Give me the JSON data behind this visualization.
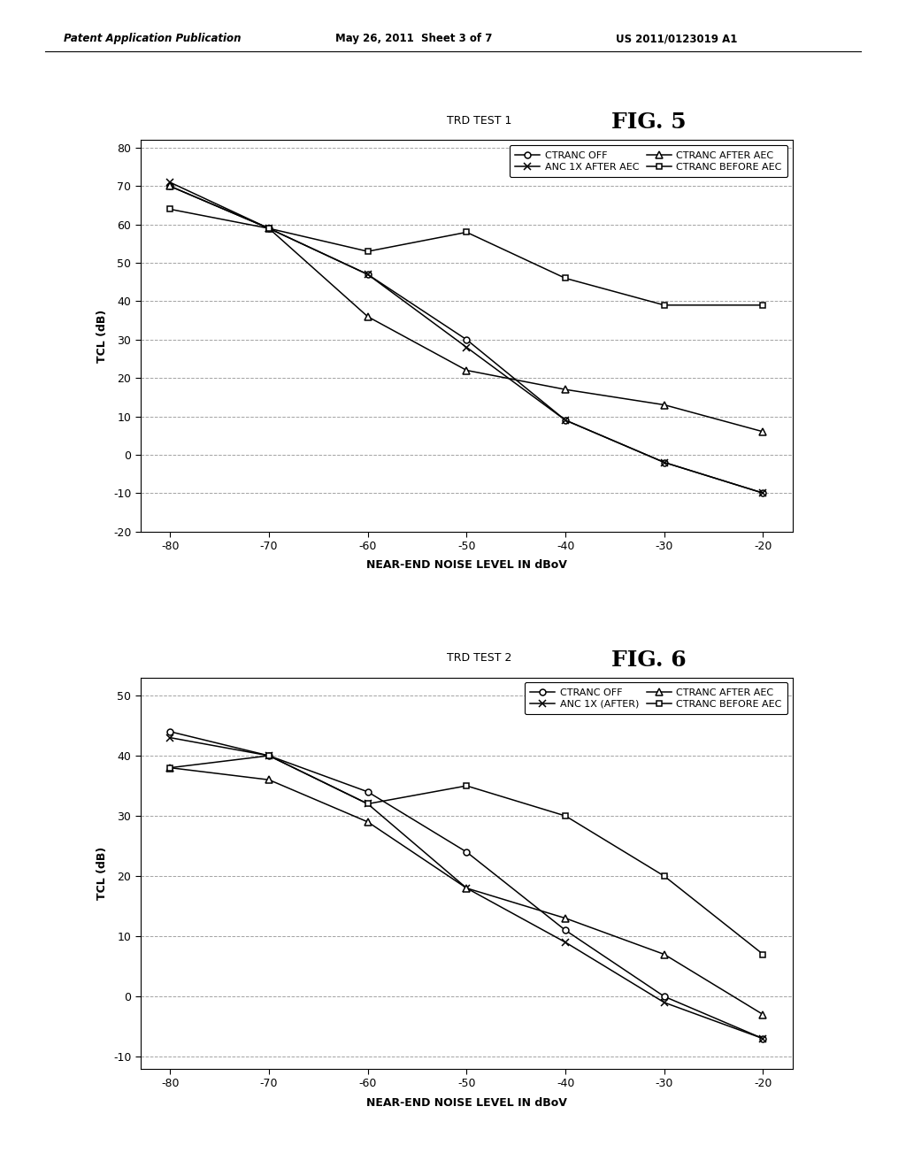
{
  "fig5": {
    "title": "TRD TEST 1",
    "fig_label": "FIG. 5",
    "xlabel": "NEAR-END NOISE LEVEL IN dBoV",
    "ylabel": "TCL (dB)",
    "xlim": [
      -83,
      -17
    ],
    "ylim": [
      -20,
      82
    ],
    "yticks": [
      -20,
      -10,
      0,
      10,
      20,
      30,
      40,
      50,
      60,
      70,
      80
    ],
    "xticks": [
      -80,
      -70,
      -60,
      -50,
      -40,
      -30,
      -20
    ],
    "x": [
      -80,
      -70,
      -60,
      -50,
      -40,
      -30,
      -20
    ],
    "series": [
      {
        "label": "CTRANC OFF",
        "marker": "o",
        "y": [
          70,
          59,
          47,
          30,
          9,
          -2,
          -10
        ]
      },
      {
        "label": "ANC 1X AFTER AEC",
        "marker": "x",
        "y": [
          71,
          59,
          47,
          28,
          9,
          -2,
          -10
        ]
      },
      {
        "label": "CTRANC AFTER AEC",
        "marker": "^",
        "y": [
          70,
          59,
          36,
          22,
          17,
          13,
          6
        ]
      },
      {
        "label": "CTRANC BEFORE AEC",
        "marker": "s",
        "y": [
          64,
          59,
          53,
          58,
          46,
          39,
          39
        ]
      }
    ]
  },
  "fig6": {
    "title": "TRD TEST 2",
    "fig_label": "FIG. 6",
    "xlabel": "NEAR-END NOISE LEVEL IN dBoV",
    "ylabel": "TCL (dB)",
    "xlim": [
      -83,
      -17
    ],
    "ylim": [
      -12,
      53
    ],
    "yticks": [
      -10,
      0,
      10,
      20,
      30,
      40,
      50
    ],
    "xticks": [
      -80,
      -70,
      -60,
      -50,
      -40,
      -30,
      -20
    ],
    "x": [
      -80,
      -70,
      -60,
      -50,
      -40,
      -30,
      -20
    ],
    "series": [
      {
        "label": "CTRANC OFF",
        "marker": "o",
        "y": [
          44,
          40,
          34,
          24,
          11,
          0,
          -7
        ]
      },
      {
        "label": "ANC 1X (AFTER)",
        "marker": "x",
        "y": [
          43,
          40,
          32,
          18,
          9,
          -1,
          -7
        ]
      },
      {
        "label": "CTRANC AFTER AEC",
        "marker": "^",
        "y": [
          38,
          36,
          29,
          18,
          13,
          7,
          -3
        ]
      },
      {
        "label": "CTRANC BEFORE AEC",
        "marker": "s",
        "y": [
          38,
          40,
          32,
          35,
          30,
          20,
          7
        ]
      }
    ]
  },
  "header_left": "Patent Application Publication",
  "header_mid": "May 26, 2011  Sheet 3 of 7",
  "header_right": "US 2011/0123019 A1",
  "bg_color": "#ffffff",
  "line_color": "#000000",
  "grid_color": "#999999",
  "legend_fontsize": 8,
  "axis_fontsize": 9,
  "title_fontsize": 9,
  "fig_label_fontsize": 18,
  "label_fontsize": 9
}
